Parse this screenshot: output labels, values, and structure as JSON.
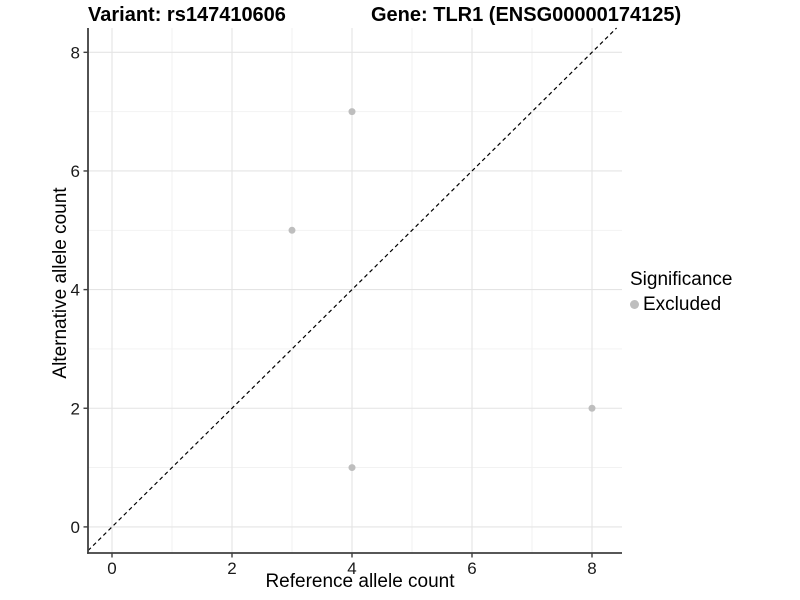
{
  "chart_data": {
    "type": "scatter",
    "title_left": "Variant: rs147410606",
    "title_right": "Gene: TLR1 (ENSG00000174125)",
    "xlabel": "Reference allele count",
    "ylabel": "Alternative allele count",
    "xlim": [
      -0.4,
      8.5
    ],
    "ylim": [
      -0.44,
      8.41
    ],
    "x_ticks": [
      0,
      2,
      4,
      6,
      8
    ],
    "x_minor_ticks": [
      1,
      3,
      5,
      7
    ],
    "y_ticks": [
      0,
      2,
      4,
      6,
      8
    ],
    "y_minor_ticks": [
      1,
      3,
      5,
      7
    ],
    "grid": "major and minor gridlines on",
    "legend_position": "right",
    "identity_line": {
      "equation": "y = x",
      "style": "dashed",
      "color": "#000000"
    },
    "legend": {
      "title": "Significance",
      "items": [
        {
          "label": "Excluded",
          "color": "#bebebe"
        }
      ]
    },
    "series": [
      {
        "name": "Excluded",
        "color": "#bebebe",
        "points": [
          {
            "x": 4,
            "y": 7
          },
          {
            "x": 3,
            "y": 5
          },
          {
            "x": 8,
            "y": 2
          },
          {
            "x": 4,
            "y": 1
          }
        ]
      }
    ]
  },
  "colors": {
    "background": "#ffffff",
    "axis_line": "#3f3f3f",
    "tick_mark": "#3f3f3f",
    "tick_label": "#1a1a1a",
    "grid_major": "#e4e4e4",
    "grid_minor": "#f1f1f1",
    "point": "#bebebe",
    "identity_line": "#000000"
  }
}
